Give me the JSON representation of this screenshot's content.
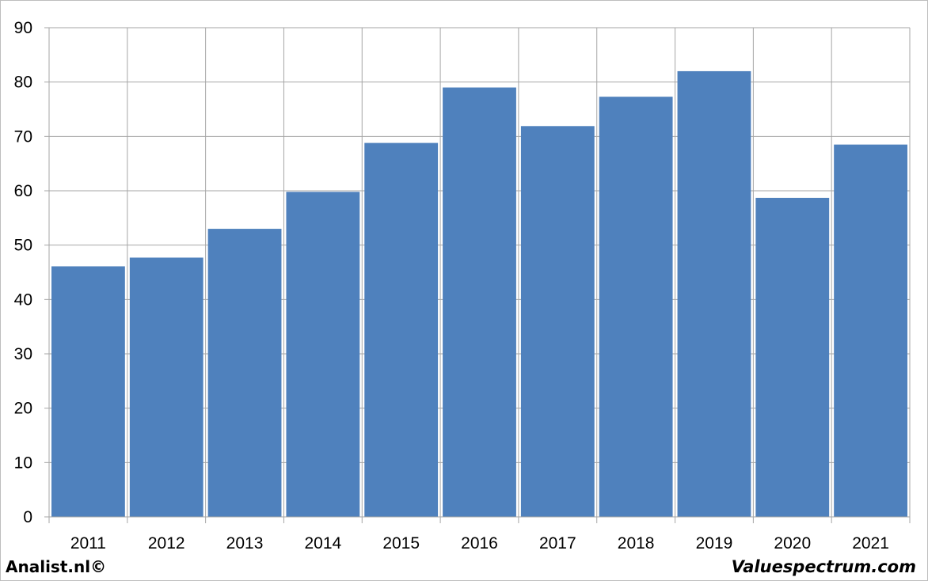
{
  "chart_data": {
    "type": "bar",
    "categories": [
      "2011",
      "2012",
      "2013",
      "2014",
      "2015",
      "2016",
      "2017",
      "2018",
      "2019",
      "2020",
      "2021"
    ],
    "values": [
      46.1,
      47.7,
      53.0,
      59.8,
      68.8,
      79.0,
      71.9,
      77.3,
      82.0,
      58.7,
      68.5
    ],
    "title": "",
    "xlabel": "",
    "ylabel": "",
    "ylim": [
      0,
      90
    ],
    "yticks": [
      "0",
      "10",
      "20",
      "30",
      "40",
      "50",
      "60",
      "70",
      "80",
      "90"
    ],
    "grid": true,
    "legend": "none",
    "bar_color": "#4f81bd",
    "grid_color": "#a6a6a6"
  },
  "footer": {
    "left": "Analist.nl©",
    "right": "Valuespectrum.com"
  }
}
